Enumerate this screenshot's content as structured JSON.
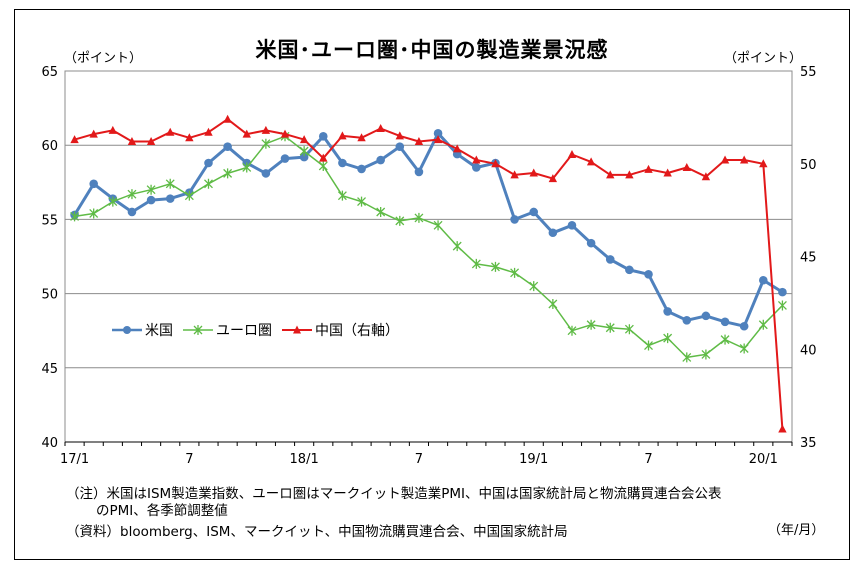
{
  "title": "米国･ユーロ圏･中国の製造業景況感",
  "left_unit": "（ポイント）",
  "right_unit": "（ポイント）",
  "x_unit": "（年/月）",
  "notes": {
    "line1": "（注）米国はISM製造業指数、ユーロ圏はマークイット製造業PMI、中国は国家統計局と物流購買連合会公表",
    "line2": "のPMI、各季節調整値",
    "line3": "（資料）bloomberg、ISM、マークイット、中国物流購買連合会、中国国家統計局"
  },
  "colors": {
    "us": "#4F81BD",
    "euro": "#5FBB46",
    "china": "#E2191A",
    "grid": "#8C8C8C"
  },
  "chart_data": {
    "type": "line",
    "x": [
      "17/1",
      "17/2",
      "17/3",
      "17/4",
      "17/5",
      "17/6",
      "17/7",
      "17/8",
      "17/9",
      "17/10",
      "17/11",
      "17/12",
      "18/1",
      "18/2",
      "18/3",
      "18/4",
      "18/5",
      "18/6",
      "18/7",
      "18/8",
      "18/9",
      "18/10",
      "18/11",
      "18/12",
      "19/1",
      "19/2",
      "19/3",
      "19/4",
      "19/5",
      "19/6",
      "19/7",
      "19/8",
      "19/9",
      "19/10",
      "19/11",
      "19/12",
      "20/1",
      "20/2"
    ],
    "x_tick_labels": [
      "17/1",
      "7",
      "18/1",
      "7",
      "19/1",
      "7",
      "20/1"
    ],
    "x_tick_indices": [
      0,
      6,
      12,
      18,
      24,
      30,
      36
    ],
    "left_axis": {
      "ylim": [
        40,
        65
      ],
      "ticks": [
        40,
        45,
        50,
        55,
        60,
        65
      ]
    },
    "right_axis": {
      "ylim": [
        35,
        55
      ],
      "ticks": [
        35,
        40,
        45,
        50,
        55
      ]
    },
    "grid": true,
    "legend_position": "middle-left",
    "series": [
      {
        "name": "米国",
        "axis": "left",
        "marker": "circle",
        "values": [
          55.3,
          57.4,
          56.4,
          55.5,
          56.3,
          56.4,
          56.8,
          58.8,
          59.9,
          58.8,
          58.1,
          59.1,
          59.2,
          60.6,
          58.8,
          58.4,
          59.0,
          59.9,
          58.2,
          60.8,
          59.4,
          58.5,
          58.8,
          55.0,
          55.5,
          54.1,
          54.6,
          53.4,
          52.3,
          51.6,
          51.3,
          48.8,
          48.2,
          48.5,
          48.1,
          47.8,
          50.9,
          50.1
        ]
      },
      {
        "name": "ユーロ圏",
        "axis": "left",
        "marker": "asterisk",
        "values": [
          55.2,
          55.4,
          56.2,
          56.7,
          57.0,
          57.4,
          56.6,
          57.4,
          58.1,
          58.5,
          60.1,
          60.6,
          59.6,
          58.6,
          56.6,
          56.2,
          55.5,
          54.9,
          55.1,
          54.6,
          53.2,
          52.0,
          51.8,
          51.4,
          50.5,
          49.3,
          47.5,
          47.9,
          47.7,
          47.6,
          46.5,
          47.0,
          45.7,
          45.9,
          46.9,
          46.3,
          47.9,
          49.2
        ]
      },
      {
        "name": "中国（右軸）",
        "axis": "right",
        "marker": "triangle",
        "values": [
          51.3,
          51.6,
          51.8,
          51.2,
          51.2,
          51.7,
          51.4,
          51.7,
          52.4,
          51.6,
          51.8,
          51.6,
          51.3,
          50.3,
          51.5,
          51.4,
          51.9,
          51.5,
          51.2,
          51.3,
          50.8,
          50.2,
          50.0,
          49.4,
          49.5,
          49.2,
          50.5,
          50.1,
          49.4,
          49.4,
          49.7,
          49.5,
          49.8,
          49.3,
          50.2,
          50.2,
          50.0,
          35.7
        ]
      }
    ]
  }
}
